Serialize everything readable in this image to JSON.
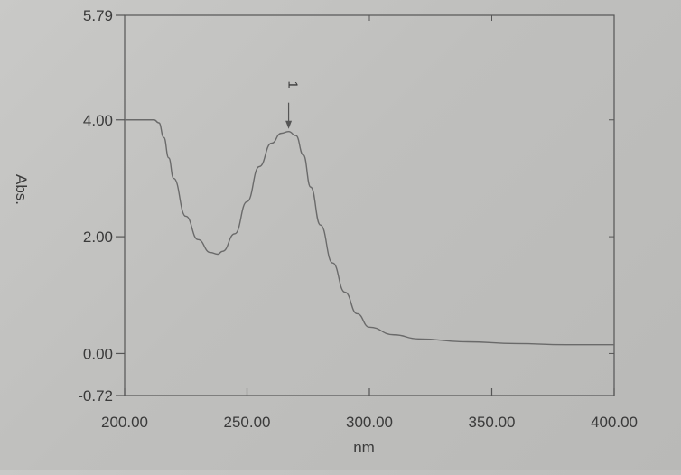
{
  "chart_data": {
    "type": "line",
    "title": "",
    "xlabel": "nm",
    "ylabel": "Abs.",
    "xlim": [
      200,
      400
    ],
    "ylim": [
      -0.72,
      5.79
    ],
    "x_ticks": [
      200,
      250,
      300,
      350,
      400
    ],
    "x_tick_labels": [
      "200.00",
      "250.00",
      "300.00",
      "350.00",
      "400.00"
    ],
    "y_ticks": [
      -0.72,
      0,
      2,
      4,
      5.79
    ],
    "y_tick_labels": [
      "-0.72",
      "0.00",
      "2.00",
      "4.00",
      "5.79"
    ],
    "grid": false,
    "series": [
      {
        "x": [
          200,
          212,
          214,
          216,
          218,
          220,
          225,
          230,
          235,
          238,
          240,
          245,
          250,
          255,
          260,
          264,
          267,
          270,
          273,
          276,
          280,
          285,
          290,
          295,
          300,
          310,
          320,
          340,
          360,
          380,
          400
        ],
        "y": [
          4.0,
          4.0,
          3.95,
          3.7,
          3.35,
          3.0,
          2.35,
          1.95,
          1.73,
          1.7,
          1.75,
          2.05,
          2.6,
          3.2,
          3.6,
          3.77,
          3.8,
          3.73,
          3.4,
          2.85,
          2.2,
          1.55,
          1.05,
          0.68,
          0.45,
          0.32,
          0.25,
          0.2,
          0.17,
          0.15,
          0.15
        ]
      }
    ],
    "annotations": [
      {
        "label": "1",
        "x": 267,
        "y": 3.8
      }
    ]
  }
}
